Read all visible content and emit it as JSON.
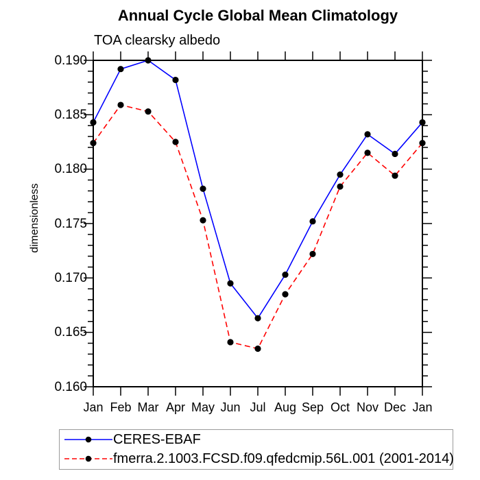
{
  "chart_data": {
    "type": "line",
    "title": "Annual Cycle Global Mean Climatology",
    "subtitle": "TOA clearsky albedo",
    "ylabel": "dimensionless",
    "xlabel": "",
    "categories": [
      "Jan",
      "Feb",
      "Mar",
      "Apr",
      "May",
      "Jun",
      "Jul",
      "Aug",
      "Sep",
      "Oct",
      "Nov",
      "Dec",
      "Jan"
    ],
    "ylim": [
      0.16,
      0.19
    ],
    "ytick_major_step": 0.005,
    "ytick_minor_step": 0.001,
    "ytick_labels": [
      "0.190",
      "0.185",
      "0.180",
      "0.175",
      "0.170",
      "0.165",
      "0.160"
    ],
    "grid": false,
    "legend_position": "bottom",
    "axis_color": "#000000",
    "marker_color": "#000000",
    "series": [
      {
        "name": "CERES-EBAF",
        "color": "#0000ff",
        "line_style": "solid",
        "marker": "filled-circle",
        "values": [
          0.1843,
          0.1892,
          0.19,
          0.1882,
          0.1782,
          0.1695,
          0.1663,
          0.1703,
          0.1752,
          0.1795,
          0.1832,
          0.1814,
          0.1843
        ]
      },
      {
        "name": "fmerra.2.1003.FCSD.f09.qfedcmip.56L.001 (2001-2014)",
        "color": "#ff0000",
        "line_style": "dashed",
        "marker": "filled-circle",
        "values": [
          0.1824,
          0.1859,
          0.1853,
          0.1825,
          0.1753,
          0.1641,
          0.1635,
          0.1685,
          0.1722,
          0.1784,
          0.1815,
          0.1794,
          0.1824
        ]
      }
    ]
  }
}
